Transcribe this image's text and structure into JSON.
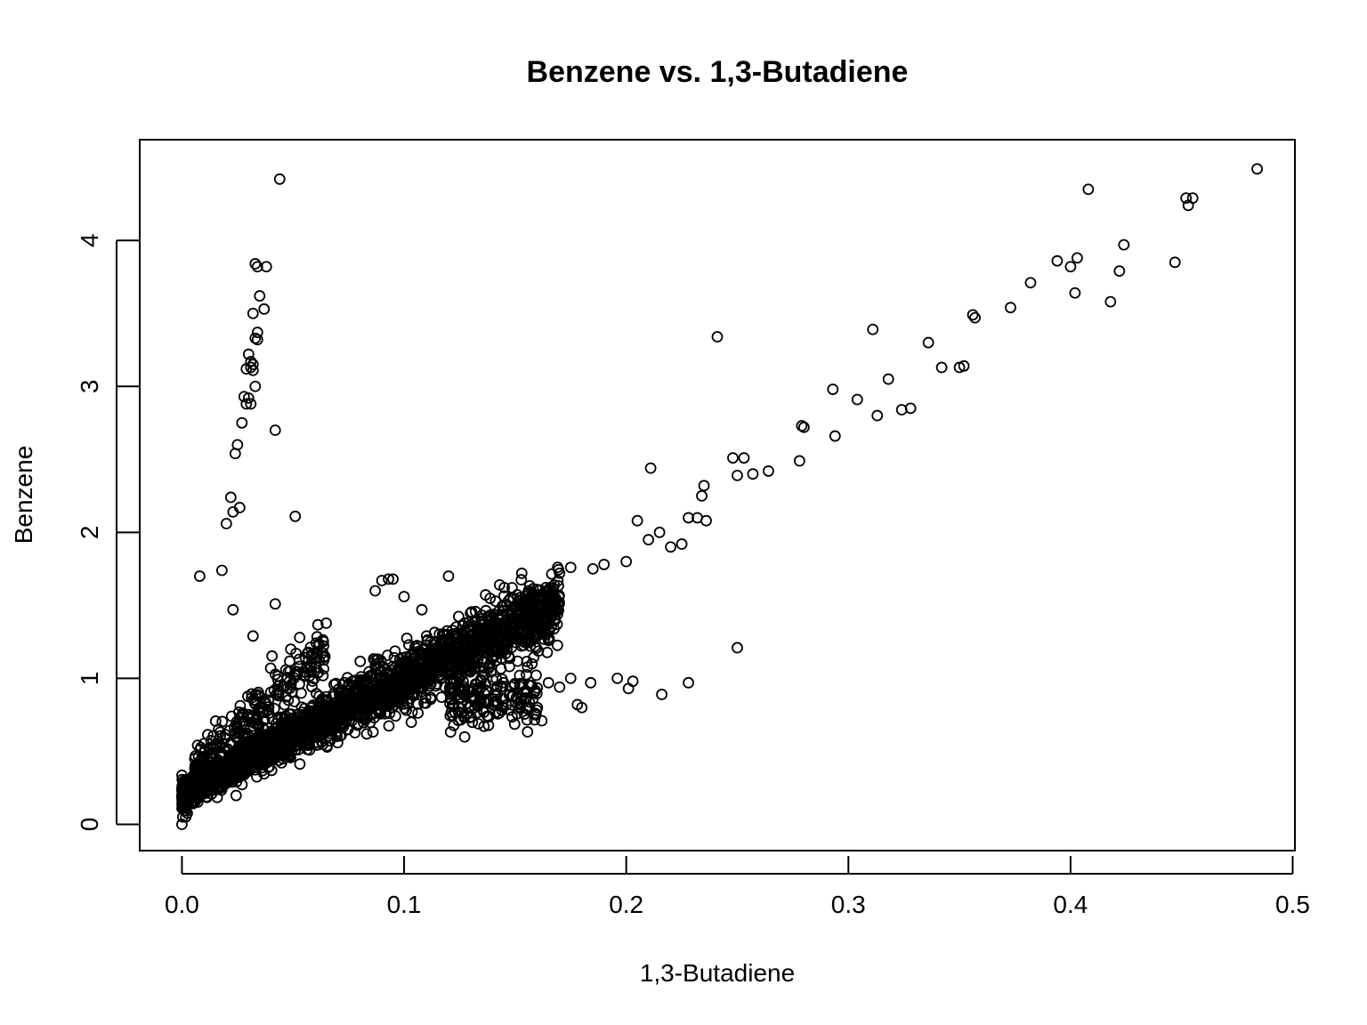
{
  "chart_data": {
    "type": "scatter",
    "title": "Benzene vs. 1,3-Butadiene",
    "xlabel": "1,3-Butadiene",
    "ylabel": "Benzene",
    "xlim": [
      -0.019,
      0.501
    ],
    "ylim": [
      -0.18,
      4.69
    ],
    "xticks": [
      0.0,
      0.1,
      0.2,
      0.3,
      0.4,
      0.5
    ],
    "xtick_labels": [
      "0.0",
      "0.1",
      "0.2",
      "0.3",
      "0.4",
      "0.5"
    ],
    "yticks": [
      0,
      1,
      2,
      3,
      4
    ],
    "ytick_labels": [
      "0",
      "1",
      "2",
      "3",
      "4"
    ],
    "marker": "open-circle",
    "marker_color": "#000000",
    "grid": false,
    "legend": "none",
    "note": "Dense main cluster approximately along y = 0.2 + 8.5x for x in [0, 0.17]; the individually listed outlier points follow.",
    "series": [
      {
        "name": "Benzene vs. 1,3-Butadiene",
        "x": [
          0.0,
          0.008,
          0.018,
          0.023,
          0.02,
          0.023,
          0.026,
          0.022,
          0.024,
          0.025,
          0.027,
          0.028,
          0.029,
          0.031,
          0.03,
          0.029,
          0.031,
          0.032,
          0.031,
          0.03,
          0.032,
          0.033,
          0.034,
          0.032,
          0.033,
          0.034,
          0.035,
          0.037,
          0.038,
          0.034,
          0.033,
          0.042,
          0.044,
          0.051,
          0.042,
          0.032,
          0.049,
          0.053,
          0.087,
          0.09,
          0.093,
          0.095,
          0.1,
          0.108,
          0.12,
          0.143,
          0.148,
          0.155,
          0.162,
          0.156,
          0.17,
          0.175,
          0.185,
          0.19,
          0.2,
          0.205,
          0.21,
          0.211,
          0.215,
          0.22,
          0.225,
          0.232,
          0.234,
          0.235,
          0.236,
          0.228,
          0.241,
          0.248,
          0.25,
          0.253,
          0.257,
          0.264,
          0.278,
          0.279,
          0.28,
          0.293,
          0.294,
          0.304,
          0.311,
          0.313,
          0.318,
          0.324,
          0.328,
          0.336,
          0.342,
          0.35,
          0.352,
          0.356,
          0.357,
          0.373,
          0.382,
          0.394,
          0.4,
          0.402,
          0.403,
          0.408,
          0.418,
          0.422,
          0.424,
          0.447,
          0.452,
          0.453,
          0.455,
          0.484,
          0.25,
          0.228,
          0.216,
          0.203,
          0.201,
          0.196,
          0.184,
          0.18,
          0.178,
          0.175,
          0.17,
          0.165,
          0.16,
          0.162,
          0.155,
          0.152
        ],
        "y": [
          0.0,
          1.7,
          1.74,
          1.47,
          2.06,
          2.14,
          2.17,
          2.24,
          2.54,
          2.6,
          2.75,
          2.93,
          2.88,
          2.88,
          2.92,
          3.12,
          3.13,
          3.15,
          3.17,
          3.22,
          3.11,
          3.33,
          3.37,
          3.5,
          3.84,
          3.32,
          3.62,
          3.53,
          3.82,
          3.82,
          3.0,
          2.7,
          4.42,
          2.11,
          1.51,
          1.29,
          1.2,
          1.28,
          1.6,
          1.67,
          1.68,
          1.68,
          1.56,
          1.47,
          1.7,
          1.64,
          1.55,
          1.52,
          1.57,
          1.6,
          1.72,
          1.76,
          1.75,
          1.78,
          1.8,
          2.08,
          1.95,
          2.44,
          2.0,
          1.9,
          1.92,
          2.1,
          2.25,
          2.32,
          2.08,
          2.1,
          3.34,
          2.51,
          2.39,
          2.51,
          2.4,
          2.42,
          2.49,
          2.73,
          2.72,
          2.98,
          2.66,
          2.91,
          3.39,
          2.8,
          3.05,
          2.84,
          2.85,
          3.3,
          3.13,
          3.13,
          3.14,
          3.49,
          3.47,
          3.54,
          3.71,
          3.86,
          3.82,
          3.64,
          3.88,
          4.35,
          3.58,
          3.79,
          3.97,
          3.85,
          4.29,
          4.24,
          4.29,
          4.49,
          1.21,
          0.97,
          0.89,
          0.98,
          0.93,
          1.0,
          0.97,
          0.8,
          0.82,
          1.0,
          0.94,
          0.97,
          0.8,
          0.71,
          0.86,
          1.02
        ]
      }
    ]
  }
}
